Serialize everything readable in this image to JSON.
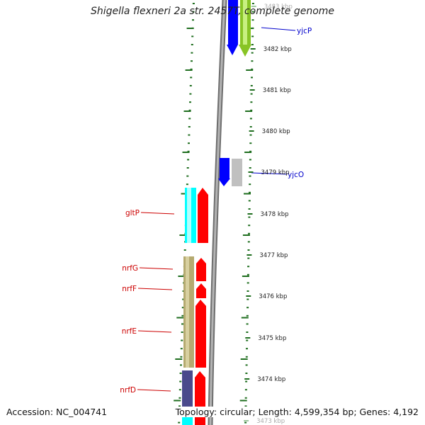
{
  "title": "Shigella flexneri 2a str. 2457T, complete genome",
  "footer": {
    "accession": "Accession: NC_004741",
    "summary": "Topology: circular; Length: 4,599,354 bp; Genes: 4,192"
  },
  "scale": {
    "unit": "kbp",
    "ticks": [
      {
        "label": "3483 kbp",
        "faded": true
      },
      {
        "label": "3482 kbp"
      },
      {
        "label": "3481 kbp"
      },
      {
        "label": "3480 kbp"
      },
      {
        "label": "3479 kbp"
      },
      {
        "label": "3478 kbp"
      },
      {
        "label": "3477 kbp"
      },
      {
        "label": "3476 kbp"
      },
      {
        "label": "3475 kbp"
      },
      {
        "label": "3474 kbp"
      },
      {
        "label": "3473 kbp",
        "faded": true
      }
    ]
  },
  "colors": {
    "backbone": "#8c8c8c",
    "ruler": "#1f6e1f",
    "label_forward": "#0000cc",
    "label_reverse": "#cc0000",
    "red": "#ff0000",
    "blue": "#0000ff",
    "green": "#88c425",
    "gray": "#c0c0c0",
    "cyan": "#00ffff",
    "khaki": "#b5aa70",
    "navy": "#4a4a8c"
  },
  "labels": {
    "forward": [
      "yjcP",
      "yjcO"
    ],
    "reverse": [
      "gltP",
      "nrfG",
      "nrfF",
      "nrfE",
      "nrfD"
    ]
  }
}
